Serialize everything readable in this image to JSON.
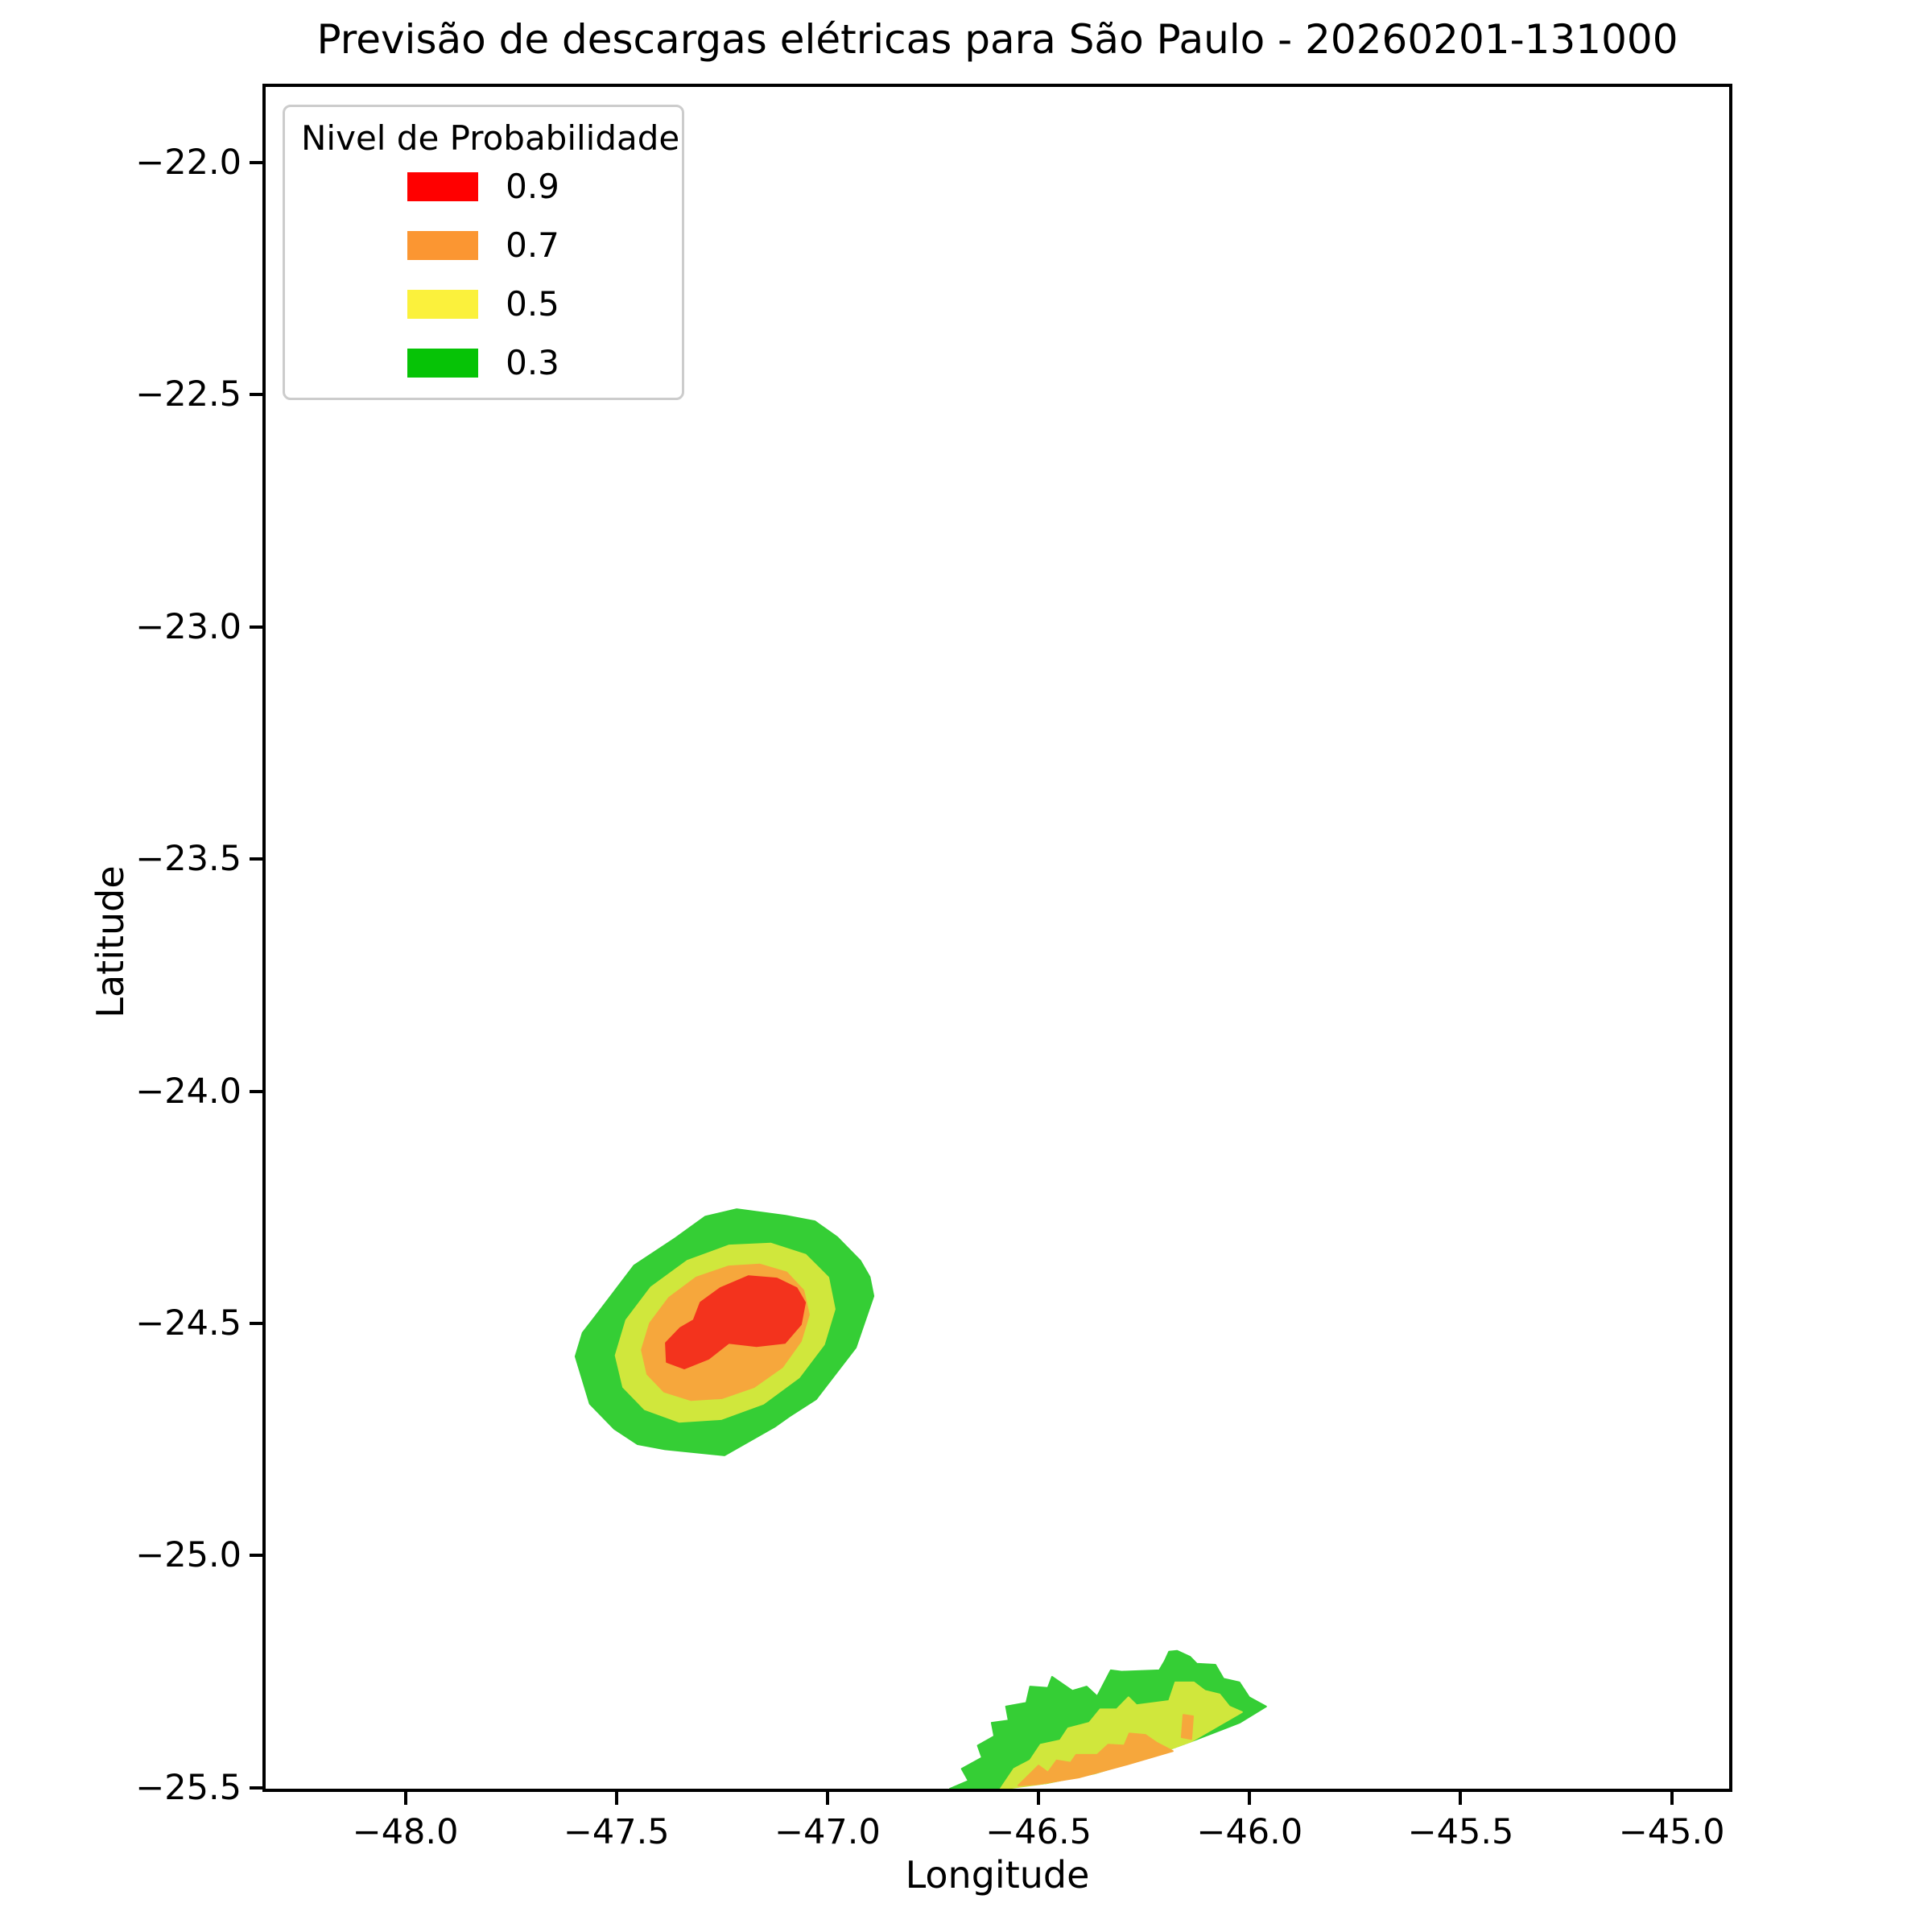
{
  "chart_data": {
    "type": "contour-map",
    "title": "Previsão de descargas elétricas para São Paulo - 20260201-131000",
    "xlabel": "Longitude",
    "ylabel": "Latitude",
    "xlim": [
      -48.331,
      -44.864
    ],
    "ylim": [
      -25.502,
      -21.837
    ],
    "grid": false,
    "x_ticks": [
      {
        "value": -48.0,
        "label": "−48.0"
      },
      {
        "value": -47.5,
        "label": "−47.5"
      },
      {
        "value": -47.0,
        "label": "−47.0"
      },
      {
        "value": -46.5,
        "label": "−46.5"
      },
      {
        "value": -46.0,
        "label": "−46.0"
      },
      {
        "value": -45.5,
        "label": "−45.5"
      },
      {
        "value": -45.0,
        "label": "−45.0"
      }
    ],
    "y_ticks": [
      {
        "value": -22.0,
        "label": "−22.0"
      },
      {
        "value": -22.5,
        "label": "−22.5"
      },
      {
        "value": -23.0,
        "label": "−23.0"
      },
      {
        "value": -23.5,
        "label": "−23.5"
      },
      {
        "value": -24.0,
        "label": "−24.0"
      },
      {
        "value": -24.5,
        "label": "−24.5"
      },
      {
        "value": -25.0,
        "label": "−25.0"
      },
      {
        "value": -25.5,
        "label": "−25.5"
      }
    ],
    "legend": {
      "title": "Nivel de Probabilidade",
      "position": "upper left",
      "entries": [
        {
          "label": "0.9",
          "color": "#ff0000"
        },
        {
          "label": "0.7",
          "color": "#fb9632"
        },
        {
          "label": "0.5",
          "color": "#fbf13c"
        },
        {
          "label": "0.3",
          "color": "#06c306"
        }
      ]
    },
    "fill_colors": {
      "p03": "#35ce35",
      "p05": "#d0e73c",
      "p07": "#f6a73c",
      "p09": "#f3331d"
    },
    "regions": [
      {
        "name": "storm1-level-0.3",
        "level": 0.3,
        "color": "#35ce35",
        "points": [
          [
            -46.922,
            -24.365
          ],
          [
            -46.9,
            -24.4
          ],
          [
            -46.891,
            -24.441
          ],
          [
            -46.933,
            -24.552
          ],
          [
            -47.027,
            -24.663
          ],
          [
            -47.09,
            -24.7
          ],
          [
            -47.124,
            -24.722
          ],
          [
            -47.244,
            -24.784
          ],
          [
            -47.385,
            -24.771
          ],
          [
            -47.45,
            -24.76
          ],
          [
            -47.505,
            -24.727
          ],
          [
            -47.563,
            -24.673
          ],
          [
            -47.597,
            -24.571
          ],
          [
            -47.58,
            -24.52
          ],
          [
            -47.551,
            -24.486
          ],
          [
            -47.458,
            -24.375
          ],
          [
            -47.36,
            -24.316
          ],
          [
            -47.29,
            -24.27
          ],
          [
            -47.215,
            -24.254
          ],
          [
            -47.099,
            -24.268
          ],
          [
            -47.03,
            -24.28
          ],
          [
            -46.977,
            -24.314
          ]
        ]
      },
      {
        "name": "storm1-level-0.5",
        "level": 0.5,
        "color": "#d0e73c",
        "points": [
          [
            -46.998,
            -24.401
          ],
          [
            -46.983,
            -24.469
          ],
          [
            -47.008,
            -24.545
          ],
          [
            -47.067,
            -24.616
          ],
          [
            -47.152,
            -24.673
          ],
          [
            -47.252,
            -24.706
          ],
          [
            -47.351,
            -24.712
          ],
          [
            -47.433,
            -24.685
          ],
          [
            -47.484,
            -24.637
          ],
          [
            -47.502,
            -24.569
          ],
          [
            -47.477,
            -24.493
          ],
          [
            -47.418,
            -24.422
          ],
          [
            -47.332,
            -24.365
          ],
          [
            -47.233,
            -24.332
          ],
          [
            -47.134,
            -24.328
          ],
          [
            -47.052,
            -24.352
          ]
        ]
      },
      {
        "name": "storm1-level-0.7",
        "level": 0.7,
        "color": "#f6a73c",
        "points": [
          [
            -47.057,
            -24.429
          ],
          [
            -47.044,
            -24.481
          ],
          [
            -47.063,
            -24.538
          ],
          [
            -47.107,
            -24.594
          ],
          [
            -47.174,
            -24.637
          ],
          [
            -47.25,
            -24.661
          ],
          [
            -47.324,
            -24.665
          ],
          [
            -47.387,
            -24.647
          ],
          [
            -47.427,
            -24.609
          ],
          [
            -47.44,
            -24.557
          ],
          [
            -47.421,
            -24.5
          ],
          [
            -47.376,
            -24.445
          ],
          [
            -47.311,
            -24.401
          ],
          [
            -47.234,
            -24.377
          ],
          [
            -47.16,
            -24.373
          ],
          [
            -47.097,
            -24.39
          ]
        ]
      },
      {
        "name": "storm1-level-0.9",
        "level": 0.9,
        "color": "#f3331d",
        "points": [
          [
            -47.053,
            -24.455
          ],
          [
            -47.063,
            -24.502
          ],
          [
            -47.101,
            -24.542
          ],
          [
            -47.168,
            -24.549
          ],
          [
            -47.234,
            -24.542
          ],
          [
            -47.282,
            -24.576
          ],
          [
            -47.339,
            -24.597
          ],
          [
            -47.381,
            -24.583
          ],
          [
            -47.383,
            -24.542
          ],
          [
            -47.349,
            -24.51
          ],
          [
            -47.317,
            -24.493
          ],
          [
            -47.301,
            -24.455
          ],
          [
            -47.254,
            -24.424
          ],
          [
            -47.187,
            -24.398
          ],
          [
            -47.12,
            -24.403
          ],
          [
            -47.073,
            -24.424
          ]
        ]
      },
      {
        "name": "storm2-level-0.3",
        "level": 0.3,
        "color": "#35ce35",
        "points": [
          [
            -46.71,
            -25.502
          ],
          [
            -46.666,
            -25.485
          ],
          [
            -46.682,
            -25.459
          ],
          [
            -46.634,
            -25.435
          ],
          [
            -46.644,
            -25.409
          ],
          [
            -46.605,
            -25.389
          ],
          [
            -46.611,
            -25.36
          ],
          [
            -46.571,
            -25.355
          ],
          [
            -46.577,
            -25.325
          ],
          [
            -46.529,
            -25.317
          ],
          [
            -46.52,
            -25.282
          ],
          [
            -46.478,
            -25.285
          ],
          [
            -46.468,
            -25.261
          ],
          [
            -46.42,
            -25.291
          ],
          [
            -46.386,
            -25.282
          ],
          [
            -46.361,
            -25.303
          ],
          [
            -46.329,
            -25.247
          ],
          [
            -46.303,
            -25.25
          ],
          [
            -46.214,
            -25.247
          ],
          [
            -46.201,
            -25.227
          ],
          [
            -46.191,
            -25.207
          ],
          [
            -46.172,
            -25.205
          ],
          [
            -46.141,
            -25.218
          ],
          [
            -46.125,
            -25.233
          ],
          [
            -46.081,
            -25.235
          ],
          [
            -46.062,
            -25.265
          ],
          [
            -46.024,
            -25.273
          ],
          [
            -46.001,
            -25.305
          ],
          [
            -45.961,
            -25.325
          ],
          [
            -46.024,
            -25.36
          ],
          [
            -46.138,
            -25.4
          ],
          [
            -46.253,
            -25.438
          ],
          [
            -46.367,
            -25.469
          ],
          [
            -46.481,
            -25.49
          ],
          [
            -46.596,
            -25.502
          ]
        ]
      },
      {
        "name": "storm2-level-0.5",
        "level": 0.5,
        "color": "#d0e73c",
        "points": [
          [
            -46.59,
            -25.502
          ],
          [
            -46.558,
            -25.459
          ],
          [
            -46.52,
            -25.441
          ],
          [
            -46.495,
            -25.407
          ],
          [
            -46.449,
            -25.398
          ],
          [
            -46.43,
            -25.372
          ],
          [
            -46.38,
            -25.36
          ],
          [
            -46.354,
            -25.331
          ],
          [
            -46.315,
            -25.331
          ],
          [
            -46.287,
            -25.305
          ],
          [
            -46.268,
            -25.322
          ],
          [
            -46.191,
            -25.313
          ],
          [
            -46.176,
            -25.273
          ],
          [
            -46.132,
            -25.273
          ],
          [
            -46.106,
            -25.291
          ],
          [
            -46.071,
            -25.299
          ],
          [
            -46.048,
            -25.325
          ],
          [
            -46.018,
            -25.337
          ],
          [
            -46.138,
            -25.4
          ],
          [
            -46.253,
            -25.438
          ],
          [
            -46.367,
            -25.469
          ],
          [
            -46.481,
            -25.49
          ],
          [
            -46.577,
            -25.502
          ]
        ]
      },
      {
        "name": "storm2-level-0.7",
        "level": 0.7,
        "color": "#f6a73c",
        "points": [
          [
            -46.548,
            -25.495
          ],
          [
            -46.5,
            -25.452
          ],
          [
            -46.478,
            -25.467
          ],
          [
            -46.457,
            -25.441
          ],
          [
            -46.424,
            -25.446
          ],
          [
            -46.411,
            -25.429
          ],
          [
            -46.361,
            -25.429
          ],
          [
            -46.335,
            -25.407
          ],
          [
            -46.297,
            -25.409
          ],
          [
            -46.285,
            -25.383
          ],
          [
            -46.247,
            -25.386
          ],
          [
            -46.22,
            -25.403
          ],
          [
            -46.182,
            -25.421
          ],
          [
            -46.291,
            -25.45
          ],
          [
            -46.405,
            -25.478
          ],
          [
            -46.5,
            -25.492
          ]
        ]
      },
      {
        "name": "storm2-level-0.7-sliver",
        "level": 0.7,
        "color": "#f6a73c",
        "points": [
          [
            -46.157,
            -25.343
          ],
          [
            -46.134,
            -25.346
          ],
          [
            -46.138,
            -25.395
          ],
          [
            -46.161,
            -25.391
          ]
        ]
      }
    ]
  }
}
